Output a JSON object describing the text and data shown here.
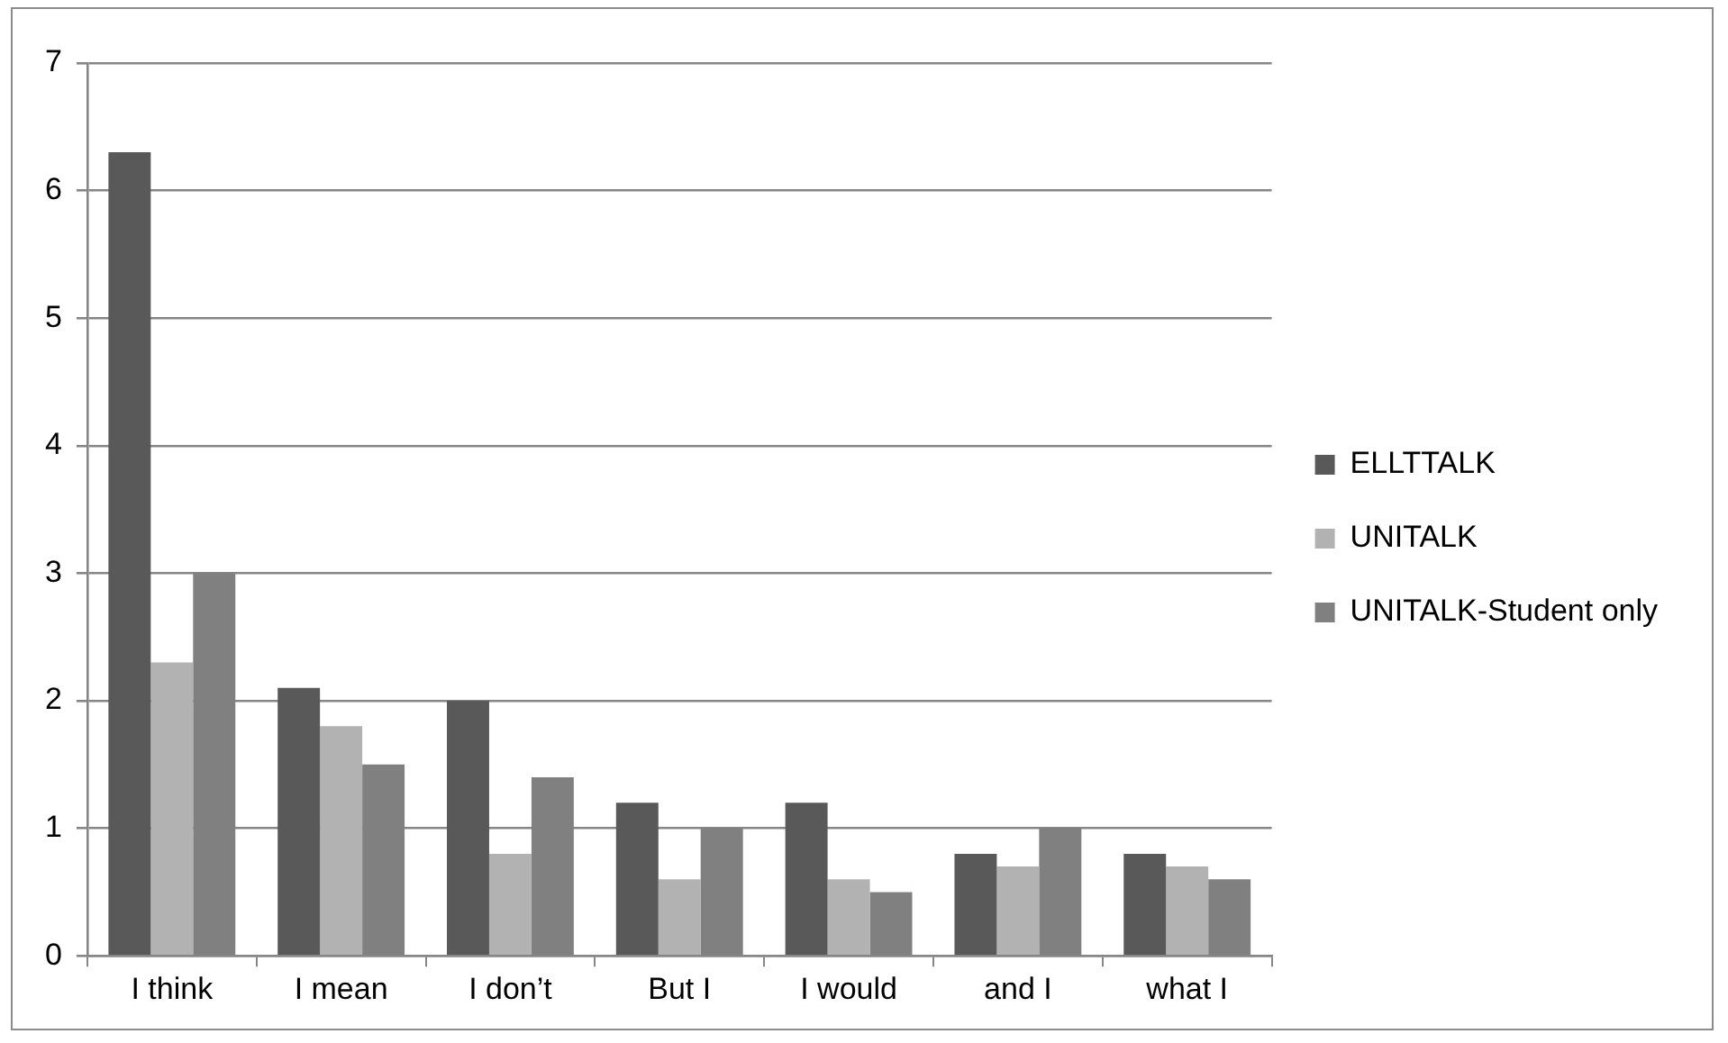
{
  "chart_data": {
    "type": "bar",
    "categories": [
      "I think",
      "I mean",
      "I don’t",
      "But I",
      "I would",
      "and I",
      "what I"
    ],
    "series": [
      {
        "name": "ELLTTALK",
        "color": "#595959",
        "values": [
          6.3,
          2.1,
          2.0,
          1.2,
          1.2,
          0.8,
          0.8
        ]
      },
      {
        "name": "UNITALK",
        "color": "#b2b2b2",
        "values": [
          2.3,
          1.8,
          0.8,
          0.6,
          0.6,
          0.7,
          0.7
        ]
      },
      {
        "name": "UNITALK-Student only",
        "color": "#808080",
        "values": [
          3.0,
          1.5,
          1.4,
          1.0,
          0.5,
          1.0,
          0.6
        ]
      }
    ],
    "ylim": [
      0,
      7
    ],
    "yticks": [
      0,
      1,
      2,
      3,
      4,
      5,
      6,
      7
    ],
    "grid": "y",
    "legend": "right"
  }
}
